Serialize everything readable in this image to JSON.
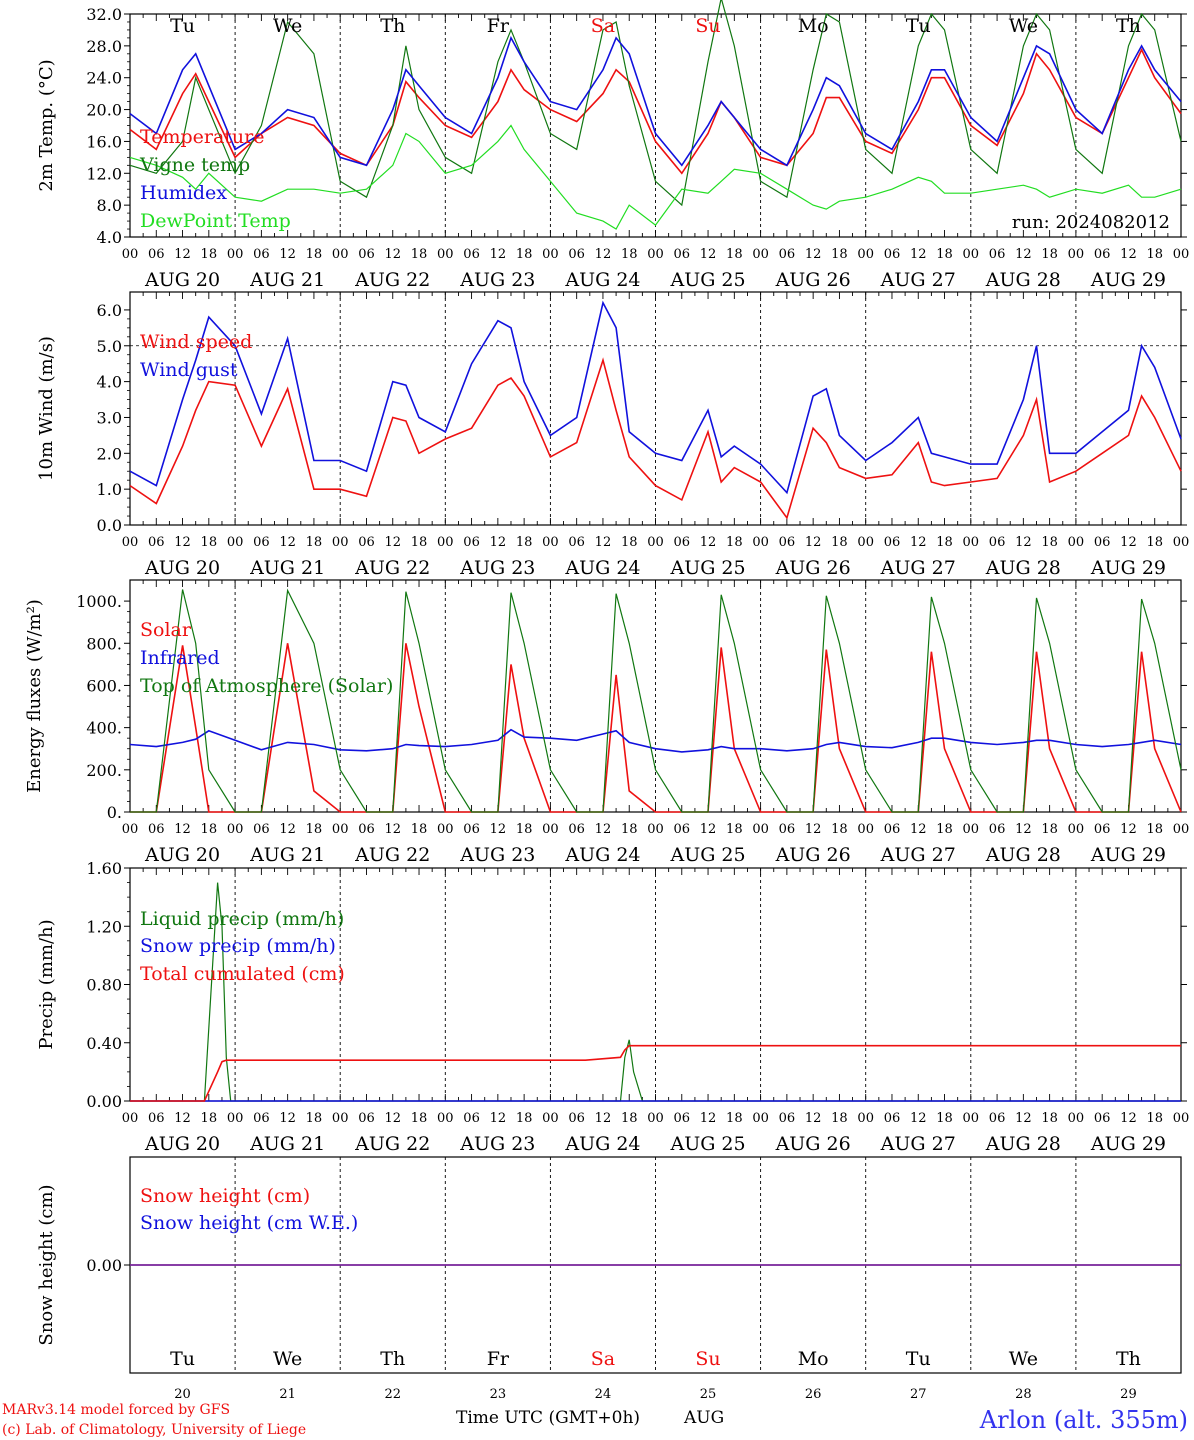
{
  "run_label": "run: 2024082012",
  "days": [
    {
      "dow": "Tu",
      "date": "AUG 20",
      "num": "20",
      "weekend": false
    },
    {
      "dow": "We",
      "date": "AUG 21",
      "num": "21",
      "weekend": false
    },
    {
      "dow": "Th",
      "date": "AUG 22",
      "num": "22",
      "weekend": false
    },
    {
      "dow": "Fr",
      "date": "AUG 23",
      "num": "23",
      "weekend": false
    },
    {
      "dow": "Sa",
      "date": "AUG 24",
      "num": "24",
      "weekend": true
    },
    {
      "dow": "Su",
      "date": "AUG 25",
      "num": "25",
      "weekend": true
    },
    {
      "dow": "Mo",
      "date": "AUG 26",
      "num": "26",
      "weekend": false
    },
    {
      "dow": "Tu",
      "date": "AUG 27",
      "num": "27",
      "weekend": false
    },
    {
      "dow": "We",
      "date": "AUG 28",
      "num": "28",
      "weekend": false
    },
    {
      "dow": "Th",
      "date": "AUG 29",
      "num": "29",
      "weekend": false
    }
  ],
  "hour_ticks": [
    "00",
    "06",
    "12",
    "18"
  ],
  "footer": {
    "credit1": "MARv3.14 model forced by GFS",
    "credit2": "(c) Lab. of Climatology, University of Liege",
    "xlabel": "Time UTC (GMT+0h)",
    "month": "AUG",
    "station": "Arlon (alt. 355m)"
  },
  "colors": {
    "red": "#ee1111",
    "green": "#117711",
    "blue": "#1111dd",
    "lightgreen": "#22dd22",
    "purple": "#772299",
    "weekend": "#ee1111",
    "text": "#000000"
  },
  "chart_data": [
    {
      "type": "line",
      "ylabel": "2m Temp. (°C)",
      "ylim": [
        4,
        32
      ],
      "yticks": [
        "4.0",
        "8.0",
        "12.0",
        "16.0",
        "20.0",
        "24.0",
        "28.0",
        "32.0"
      ],
      "x": [
        0,
        6,
        12,
        15,
        18,
        24,
        30,
        36,
        42,
        48,
        54,
        60,
        63,
        66,
        72,
        78,
        84,
        87,
        90,
        96,
        102,
        108,
        111,
        114,
        120,
        126,
        132,
        135,
        138,
        144,
        150,
        156,
        159,
        162,
        168,
        174,
        180,
        183,
        186,
        192,
        198,
        204,
        207,
        210,
        216,
        222,
        228,
        231,
        234,
        240
      ],
      "series": [
        {
          "name": "Temperature",
          "color": "red",
          "values": [
            17.5,
            15,
            22,
            24.5,
            21,
            14,
            17,
            19,
            18,
            14.5,
            13,
            18,
            23.5,
            21.5,
            18,
            16.5,
            21,
            25,
            22.5,
            20,
            18.5,
            22,
            25,
            23.5,
            16,
            12,
            17,
            21,
            19,
            14,
            13,
            17,
            21.5,
            21.5,
            16,
            14.5,
            20,
            24,
            24,
            18,
            15.5,
            22,
            27,
            25,
            19,
            17,
            24,
            27.5,
            24,
            19.5
          ]
        },
        {
          "name": "Vigne temp",
          "color": "green",
          "values": [
            13,
            12,
            16,
            24,
            20,
            12,
            18,
            31,
            27,
            11,
            9,
            18,
            28,
            20,
            14,
            12,
            26,
            30,
            26,
            17,
            15,
            30,
            31,
            23,
            11,
            8,
            26,
            34,
            28,
            11,
            9,
            25,
            32,
            31,
            15,
            12,
            28,
            32,
            30,
            15,
            12,
            28,
            32,
            30,
            15,
            12,
            28,
            32,
            30,
            16
          ]
        },
        {
          "name": "Humidex",
          "color": "blue",
          "values": [
            19.5,
            17,
            25,
            27,
            23,
            15,
            17,
            20,
            19,
            14,
            13,
            20,
            25,
            23,
            19,
            17,
            24,
            29,
            26,
            21,
            20,
            25,
            29,
            27,
            17,
            13,
            18,
            21,
            19,
            15,
            13,
            20,
            24,
            23,
            17,
            15,
            21,
            25,
            25,
            19,
            16,
            24,
            28,
            27,
            20,
            17,
            25,
            28,
            25,
            21
          ]
        },
        {
          "name": "DewPoint Temp",
          "color": "lightgreen",
          "values": [
            14,
            13,
            11.5,
            10,
            12,
            9,
            8.5,
            10,
            10,
            9.5,
            10,
            13,
            17,
            16,
            12,
            13,
            16,
            18,
            15,
            11,
            7,
            6,
            5,
            8,
            5.5,
            10,
            9.5,
            11,
            12.5,
            12,
            10,
            8,
            7.5,
            8.5,
            9,
            10,
            11.5,
            11,
            9.5,
            9.5,
            10,
            10.5,
            10,
            9,
            10,
            9.5,
            10.5,
            9,
            9,
            10
          ]
        }
      ]
    },
    {
      "type": "line",
      "ylabel": "10m Wind (m/s)",
      "ylim": [
        0,
        6.5
      ],
      "yticks": [
        "0.0",
        "1.0",
        "2.0",
        "3.0",
        "4.0",
        "5.0",
        "6.0"
      ],
      "x": [
        0,
        6,
        12,
        15,
        18,
        24,
        30,
        36,
        42,
        48,
        54,
        60,
        63,
        66,
        72,
        78,
        84,
        87,
        90,
        96,
        102,
        108,
        111,
        114,
        120,
        126,
        132,
        135,
        138,
        144,
        150,
        156,
        159,
        162,
        168,
        174,
        180,
        183,
        186,
        192,
        198,
        204,
        207,
        210,
        216,
        222,
        228,
        231,
        234,
        240
      ],
      "series": [
        {
          "name": "Wind speed",
          "color": "red",
          "values": [
            1.1,
            0.6,
            2.2,
            3.2,
            4.0,
            3.9,
            2.2,
            3.8,
            1.0,
            1.0,
            0.8,
            3.0,
            2.9,
            2.0,
            2.4,
            2.7,
            3.9,
            4.1,
            3.6,
            1.9,
            2.3,
            4.6,
            3.2,
            1.9,
            1.1,
            0.7,
            2.6,
            1.2,
            1.6,
            1.2,
            0.2,
            2.7,
            2.3,
            1.6,
            1.3,
            1.4,
            2.3,
            1.2,
            1.1,
            1.2,
            1.3,
            2.5,
            3.5,
            1.2,
            1.5,
            2.0,
            2.5,
            3.6,
            3.0,
            1.5
          ]
        },
        {
          "name": "Wind gust",
          "color": "blue",
          "values": [
            1.5,
            1.1,
            3.5,
            4.6,
            5.8,
            5.0,
            3.1,
            5.2,
            1.8,
            1.8,
            1.5,
            4.0,
            3.9,
            3.0,
            2.6,
            4.5,
            5.7,
            5.5,
            4.0,
            2.5,
            3.0,
            6.2,
            5.5,
            2.6,
            2.0,
            1.8,
            3.2,
            1.9,
            2.2,
            1.7,
            0.9,
            3.6,
            3.8,
            2.5,
            1.8,
            2.3,
            3.0,
            2.0,
            1.9,
            1.7,
            1.7,
            3.5,
            5.0,
            2.0,
            2.0,
            2.6,
            3.2,
            5.0,
            4.4,
            2.4
          ]
        }
      ]
    },
    {
      "type": "line",
      "ylabel": "Energy fluxes (W/m²)",
      "ylim": [
        0,
        1100
      ],
      "yticks": [
        "0.",
        "200.",
        "400.",
        "600.",
        "800.",
        "1000."
      ],
      "x": [
        0,
        6,
        12,
        15,
        18,
        24,
        30,
        36,
        42,
        48,
        54,
        60,
        63,
        66,
        72,
        78,
        84,
        87,
        90,
        96,
        102,
        108,
        111,
        114,
        120,
        126,
        132,
        135,
        138,
        144,
        150,
        156,
        159,
        162,
        168,
        174,
        180,
        183,
        186,
        192,
        198,
        204,
        207,
        210,
        216,
        222,
        228,
        231,
        234,
        240
      ],
      "series": [
        {
          "name": "Solar",
          "color": "red",
          "values": [
            0,
            0,
            790,
            400,
            0,
            0,
            0,
            800,
            100,
            0,
            0,
            0,
            800,
            500,
            0,
            0,
            0,
            700,
            350,
            0,
            0,
            0,
            650,
            100,
            0,
            0,
            0,
            780,
            300,
            0,
            0,
            0,
            770,
            300,
            0,
            0,
            0,
            760,
            300,
            0,
            0,
            0,
            760,
            300,
            0,
            0,
            0,
            760,
            300,
            0
          ]
        },
        {
          "name": "Infrared",
          "color": "blue",
          "values": [
            320,
            310,
            330,
            345,
            385,
            340,
            295,
            330,
            320,
            295,
            290,
            300,
            320,
            315,
            310,
            320,
            340,
            390,
            355,
            350,
            340,
            370,
            385,
            330,
            300,
            285,
            295,
            310,
            300,
            300,
            290,
            300,
            320,
            330,
            310,
            305,
            330,
            350,
            350,
            330,
            320,
            330,
            340,
            340,
            320,
            310,
            320,
            330,
            340,
            320
          ]
        },
        {
          "name": "Top of Atmosphere (Solar)",
          "color": "green",
          "values": [
            0,
            0,
            1055,
            800,
            200,
            0,
            0,
            1050,
            800,
            200,
            0,
            0,
            1045,
            800,
            200,
            0,
            0,
            1040,
            800,
            200,
            0,
            0,
            1035,
            800,
            200,
            0,
            0,
            1030,
            800,
            200,
            0,
            0,
            1025,
            800,
            200,
            0,
            0,
            1020,
            800,
            200,
            0,
            0,
            1015,
            800,
            200,
            0,
            0,
            1010,
            800,
            200
          ]
        }
      ]
    },
    {
      "type": "line",
      "ylabel": "Precip (mm/h)",
      "ylim": [
        0,
        1.6
      ],
      "yticks": [
        "0.00",
        "0.40",
        "0.80",
        "1.20",
        "1.60"
      ],
      "x": [
        0,
        17,
        20,
        21,
        22,
        23,
        24,
        100,
        104,
        112,
        113,
        114,
        115,
        117,
        120,
        240
      ],
      "series": [
        {
          "name": "Liquid precip (mm/h)",
          "color": "green",
          "values": [
            0,
            0,
            1.5,
            1.2,
            0.3,
            0,
            0,
            0,
            0,
            0,
            0.3,
            0.42,
            0.2,
            0,
            0,
            0
          ]
        },
        {
          "name": "Snow precip (mm/h)",
          "color": "blue",
          "values": [
            0,
            0,
            0,
            0,
            0,
            0,
            0,
            0,
            0,
            0,
            0,
            0,
            0,
            0,
            0,
            0
          ]
        },
        {
          "name": "Total cumulated (cm)",
          "color": "red",
          "values": [
            0,
            0,
            0.2,
            0.27,
            0.28,
            0.28,
            0.28,
            0.28,
            0.28,
            0.3,
            0.35,
            0.38,
            0.38,
            0.38,
            0.38,
            0.38
          ]
        }
      ]
    },
    {
      "type": "line",
      "ylabel": "Snow height (cm)",
      "ylim": [
        -1,
        1
      ],
      "yticks": [
        "0.00"
      ],
      "x": [
        0,
        240
      ],
      "series": [
        {
          "name": "Snow height (cm)",
          "color": "red",
          "values": [
            0,
            0
          ]
        },
        {
          "name": "Snow height (cm W.E.)",
          "color": "blue",
          "values": [
            0,
            0
          ]
        }
      ]
    }
  ]
}
